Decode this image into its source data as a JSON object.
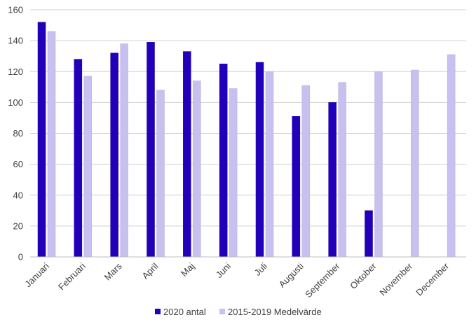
{
  "chart_data": {
    "type": "bar",
    "title": "",
    "xlabel": "",
    "ylabel": "",
    "ylim": [
      0,
      160
    ],
    "yticks": [
      0,
      20,
      40,
      60,
      80,
      100,
      120,
      140,
      160
    ],
    "grid": true,
    "legend_position": "bottom",
    "categories": [
      "Januari",
      "Februari",
      "Mars",
      "April",
      "Maj",
      "Juni",
      "Juli",
      "Augusti",
      "September",
      "Oktober",
      "November",
      "December"
    ],
    "series": [
      {
        "name": "2020 antal",
        "color": "#2200bb",
        "values": [
          152,
          128,
          132,
          139,
          133,
          125,
          126,
          91,
          100,
          30,
          null,
          null
        ]
      },
      {
        "name": "2015-2019 Medelvärde",
        "color": "#c8c0ee",
        "values": [
          146,
          117,
          138,
          108,
          114,
          109,
          120,
          111,
          113,
          120,
          121,
          131
        ]
      }
    ]
  }
}
